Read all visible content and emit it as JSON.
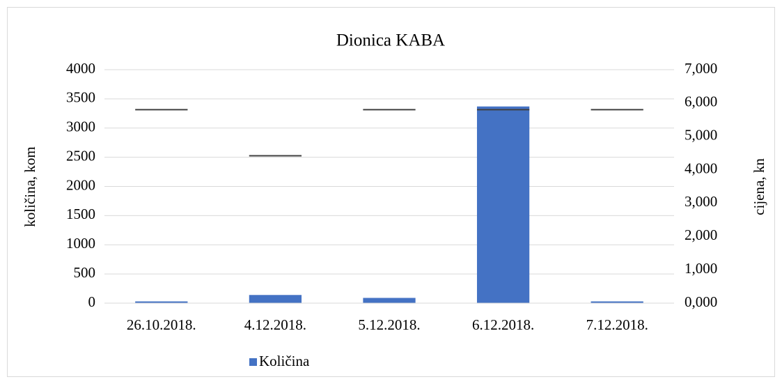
{
  "chart_data": {
    "type": "bar",
    "title": "Dionica KABA",
    "categories": [
      "26.10.2018.",
      "4.12.2018.",
      "5.12.2018.",
      "6.12.2018.",
      "7.12.2018."
    ],
    "series": [
      {
        "name": "Količina",
        "color": "#4472c4",
        "values": [
          30,
          140,
          90,
          3370,
          30
        ]
      },
      {
        "color": "#404040",
        "axis": "y2",
        "marker": "dash",
        "values": [
          5800,
          4420,
          5800,
          5800,
          5800
        ]
      }
    ],
    "ylabel": "količina, kom",
    "y2label": "cijena, kn",
    "ylim": [
      0,
      4000
    ],
    "yticks": [
      0,
      500,
      1000,
      1500,
      2000,
      2500,
      3000,
      3500,
      4000
    ],
    "y2lim": [
      0,
      7000
    ],
    "y2ticks": [
      {
        "value": 0,
        "label": "0,000"
      },
      {
        "value": 1000,
        "label": "1,000"
      },
      {
        "value": 2000,
        "label": "2,000"
      },
      {
        "value": 3000,
        "label": "3,000"
      },
      {
        "value": 4000,
        "label": "4,000"
      },
      {
        "value": 5000,
        "label": "5,000"
      },
      {
        "value": 6000,
        "label": "6,000"
      },
      {
        "value": 7000,
        "label": "7,000"
      }
    ],
    "grid": true,
    "legend": "bottom"
  }
}
